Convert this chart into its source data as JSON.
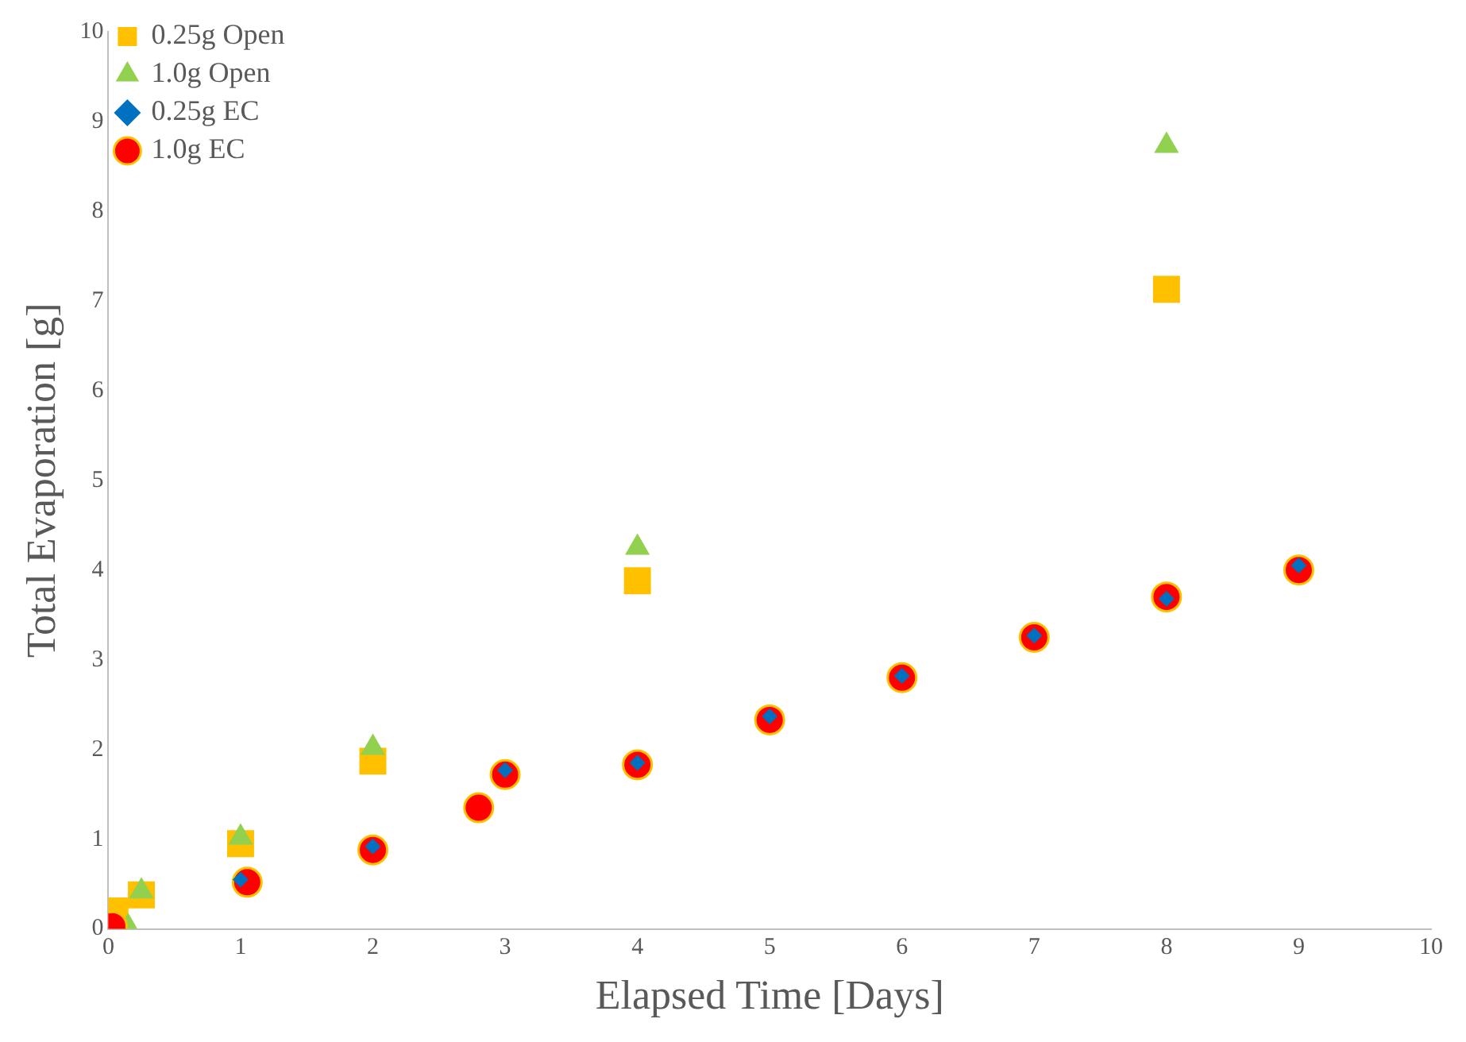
{
  "chart_data": {
    "type": "scatter",
    "xlabel": "Elapsed Time [Days]",
    "ylabel": "Total Evaporation [g]",
    "xlim": [
      0,
      10
    ],
    "xticks": [
      0,
      1,
      2,
      3,
      4,
      5,
      6,
      7,
      8,
      9,
      10
    ],
    "ylim": [
      0,
      10
    ],
    "yticks": [
      0,
      1,
      2,
      3,
      4,
      5,
      6,
      7,
      8,
      9,
      10
    ],
    "grid": false,
    "legend": "top left",
    "series": [
      {
        "name": "0.25g Open",
        "color": "#ffc000",
        "marker": "square",
        "x": [
          0.05,
          0.25,
          1,
          2,
          4,
          8
        ],
        "values": [
          0.2,
          0.38,
          0.95,
          1.87,
          3.88,
          7.13
        ]
      },
      {
        "name": "1.0g Open",
        "color": "#92d050",
        "marker": "triangle",
        "x": [
          0.15,
          0.25,
          1,
          2,
          4,
          8
        ],
        "values": [
          0.02,
          0.42,
          1.02,
          2.02,
          4.25,
          8.73
        ]
      },
      {
        "name": "0.25g EC",
        "color": "#0070c0",
        "marker": "diamond",
        "x": [
          1,
          2,
          3,
          4,
          5,
          6,
          7,
          8,
          9
        ],
        "values": [
          0.55,
          0.92,
          1.77,
          1.85,
          2.37,
          2.82,
          3.27,
          3.68,
          4.05
        ]
      },
      {
        "name": "1.0g EC",
        "color": "#ff0000",
        "marker": "circle",
        "x": [
          0.03,
          1.05,
          2,
          2.8,
          3,
          4,
          5,
          6,
          7,
          8,
          9
        ],
        "values": [
          0.03,
          0.52,
          0.88,
          1.35,
          1.72,
          1.83,
          2.33,
          2.8,
          3.25,
          3.7,
          4.0
        ]
      }
    ]
  }
}
